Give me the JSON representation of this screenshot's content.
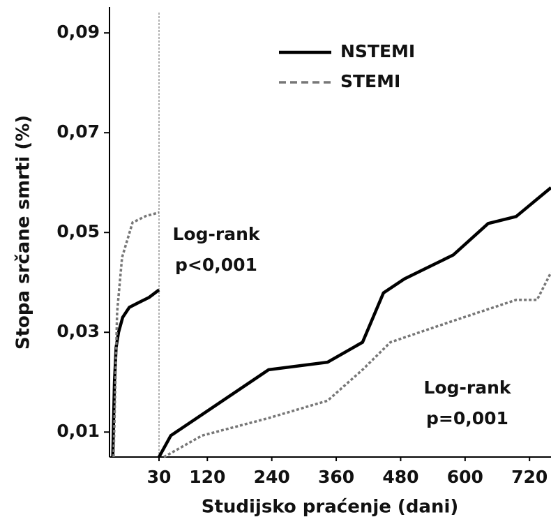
{
  "chart_data": {
    "type": "line",
    "x_label": "Studijsko praćenje (dani)",
    "y_label": "Stopa srčane smrti (%)",
    "xlim": [
      0,
      760
    ],
    "xticks": [
      30,
      120,
      240,
      360,
      480,
      600,
      720
    ],
    "ylim": [
      0.005,
      0.0952
    ],
    "yticks": [
      {
        "value": 0.01,
        "label": "0,01"
      },
      {
        "value": 0.03,
        "label": "0,03"
      },
      {
        "value": 0.05,
        "label": "0,05"
      },
      {
        "value": 0.07,
        "label": "0,07"
      },
      {
        "value": 0.09,
        "label": "0,09"
      }
    ],
    "legend_position": "upper right",
    "series": [
      {
        "name": "NSTEMI",
        "color": "#000000",
        "dash": "solid",
        "x": [
          2,
          3,
          4,
          5.5,
          8,
          12,
          18,
          24,
          30,
          null,
          30,
          52,
          110,
          234,
          344,
          409,
          448,
          487,
          578,
          643,
          695,
          760
        ],
        "values": [
          0.005,
          0.02,
          0.027,
          0.03,
          0.033,
          0.035,
          0.036,
          0.037,
          0.0385,
          null,
          0.005,
          0.0093,
          0.0135,
          0.0225,
          0.024,
          0.028,
          0.0379,
          0.0407,
          0.0455,
          0.0518,
          0.0532,
          0.059
        ]
      },
      {
        "name": "STEMI",
        "color": "#777777",
        "dash": "dashed",
        "x": [
          2.5,
          4.6,
          7.6,
          14,
          22,
          30,
          null,
          39,
          110,
          234,
          344,
          409,
          461,
          578,
          695,
          734,
          760
        ],
        "values": [
          0.005,
          0.034,
          0.045,
          0.052,
          0.0533,
          0.054,
          null,
          0.005,
          0.0093,
          0.0128,
          0.0163,
          0.0225,
          0.028,
          0.0323,
          0.0365,
          0.0365,
          0.042
        ]
      }
    ],
    "annotations": [
      {
        "lines": [
          "Log-rank",
          "p<0,001"
        ]
      },
      {
        "lines": [
          "Log-rank",
          "p=0,001"
        ]
      }
    ]
  }
}
